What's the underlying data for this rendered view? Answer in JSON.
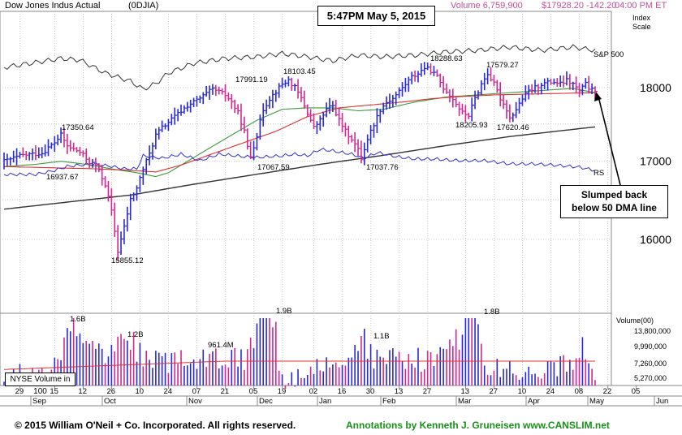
{
  "header": {
    "ticker_name": "Dow Jones Indus Actual",
    "ticker_symbol": "(0DJIA)",
    "volume": "Volume 6,759,900",
    "price": "$17928.20 -142.20",
    "time": "04:00 PM ET"
  },
  "timestamp": "5:47PM May 5, 2015",
  "index_scale_label": [
    "Index",
    "Scale"
  ],
  "sp500_label": "S&P 500",
  "rs_label": "RS",
  "annotation_callout": [
    "Slumped back",
    "below 50 DMA line"
  ],
  "nyse_volume_label": "NYSE Volume in 100",
  "footer": {
    "copyright": "© 2015  William O'Neil + Co. Incorporated. All rights reserved.",
    "annotations": "Annotations by Kenneth J. Gruneisen www.CANSLIM.net"
  },
  "colors": {
    "up_bar": "#2828d8",
    "down_bar": "#d02890",
    "ma50": "#3a9a3a",
    "ma200": "#333333",
    "ma10": "#e03030",
    "sp500_line": "#333333",
    "rs_line": "#3030d0",
    "vol_avg": "#e03030",
    "grid": "#c8c8c8"
  },
  "chart_data": {
    "type": "ohlc",
    "price_axis": {
      "ticks": [
        16000,
        17000,
        18000
      ],
      "scale": "log"
    },
    "volume_axis": {
      "ticks": [
        "13,800,000",
        "9,990,000",
        "7,260,000",
        "5,270,000"
      ],
      "unit_label": "Volume(00)"
    },
    "x_axis": {
      "day_ticks": [
        "29",
        "15",
        "12",
        "26",
        "10",
        "24",
        "07",
        "21",
        "05",
        "19",
        "02",
        "16",
        "30",
        "13",
        "27",
        "13",
        "27",
        "10",
        "24",
        "08",
        "22",
        "05"
      ],
      "month_labels": [
        "Sep",
        "Oct",
        "Nov",
        "Dec",
        "Jan",
        "Feb",
        "Mar",
        "Apr",
        "May",
        "Jun"
      ]
    },
    "price_annotations": [
      {
        "label": "17350.64",
        "value": 17350.64
      },
      {
        "label": "16937.67",
        "value": 16937.67
      },
      {
        "label": "15855.12",
        "value": 15855.12
      },
      {
        "label": "17991.19",
        "value": 17991.19
      },
      {
        "label": "18103.45",
        "value": 18103.45
      },
      {
        "label": "17067.59",
        "value": 17067.59
      },
      {
        "label": "17037.76",
        "value": 17037.76
      },
      {
        "label": "18288.63",
        "value": 18288.63
      },
      {
        "label": "18205.93",
        "value": 18205.93
      },
      {
        "label": "17620.46",
        "value": 17620.46
      },
      {
        "label": "17579.27",
        "value": 17579.27
      }
    ],
    "volume_annotations": [
      "1.6B",
      "1.2B",
      "961.4M",
      "1.9B",
      "1.1B",
      "1.8B"
    ],
    "price_path": [
      [
        0,
        17000
      ],
      [
        6,
        17080
      ],
      [
        12,
        17110
      ],
      [
        16,
        17250
      ],
      [
        18,
        17350
      ],
      [
        20,
        17200
      ],
      [
        24,
        17120
      ],
      [
        27,
        16990
      ],
      [
        29,
        16950
      ],
      [
        32,
        16700
      ],
      [
        34,
        16350
      ],
      [
        36,
        15855
      ],
      [
        38,
        16150
      ],
      [
        40,
        16500
      ],
      [
        42,
        16650
      ],
      [
        44,
        16900
      ],
      [
        46,
        17100
      ],
      [
        48,
        17350
      ],
      [
        50,
        17450
      ],
      [
        54,
        17600
      ],
      [
        58,
        17750
      ],
      [
        62,
        17850
      ],
      [
        66,
        17980
      ],
      [
        70,
        17900
      ],
      [
        72,
        17800
      ],
      [
        74,
        17650
      ],
      [
        76,
        17400
      ],
      [
        77,
        17180
      ],
      [
        78,
        17067
      ],
      [
        80,
        17350
      ],
      [
        82,
        17700
      ],
      [
        84,
        17850
      ],
      [
        86,
        17950
      ],
      [
        88,
        18050
      ],
      [
        90,
        18103
      ],
      [
        92,
        18000
      ],
      [
        94,
        17850
      ],
      [
        96,
        17650
      ],
      [
        98,
        17450
      ],
      [
        100,
        17550
      ],
      [
        102,
        17700
      ],
      [
        104,
        17750
      ],
      [
        106,
        17550
      ],
      [
        108,
        17400
      ],
      [
        110,
        17300
      ],
      [
        112,
        17150
      ],
      [
        113,
        17037
      ],
      [
        115,
        17300
      ],
      [
        117,
        17500
      ],
      [
        119,
        17700
      ],
      [
        121,
        17800
      ],
      [
        123,
        17850
      ],
      [
        125,
        17950
      ],
      [
        127,
        18050
      ],
      [
        129,
        18150
      ],
      [
        131,
        18200
      ],
      [
        133,
        18280
      ],
      [
        135,
        18240
      ],
      [
        137,
        18150
      ],
      [
        139,
        18000
      ],
      [
        141,
        17900
      ],
      [
        143,
        17780
      ],
      [
        145,
        17650
      ],
      [
        147,
        17620
      ],
      [
        149,
        17850
      ],
      [
        151,
        18050
      ],
      [
        153,
        18200
      ],
      [
        155,
        18050
      ],
      [
        157,
        17850
      ],
      [
        159,
        17700
      ],
      [
        160,
        17580
      ],
      [
        162,
        17700
      ],
      [
        164,
        17850
      ],
      [
        166,
        17950
      ],
      [
        168,
        18000
      ],
      [
        170,
        18050
      ],
      [
        172,
        18070
      ],
      [
        174,
        18080
      ],
      [
        176,
        18050
      ],
      [
        178,
        18100
      ],
      [
        180,
        18050
      ],
      [
        182,
        17950
      ],
      [
        184,
        18050
      ],
      [
        185,
        18000
      ],
      [
        187,
        17928
      ]
    ],
    "volume_path": [
      [
        0,
        6.2
      ],
      [
        12,
        7.2
      ],
      [
        16,
        8.3
      ],
      [
        22,
        16.0
      ],
      [
        30,
        9.5
      ],
      [
        38,
        12.5
      ],
      [
        46,
        8.5
      ],
      [
        58,
        8.5
      ],
      [
        64,
        9.0
      ],
      [
        66,
        9.6
      ],
      [
        76,
        9.0
      ],
      [
        84,
        19.0
      ],
      [
        88,
        5.2
      ],
      [
        94,
        6.0
      ],
      [
        100,
        7.5
      ],
      [
        108,
        7.6
      ],
      [
        114,
        11.6
      ],
      [
        118,
        8.5
      ],
      [
        132,
        8.8
      ],
      [
        140,
        8.8
      ],
      [
        148,
        17.8
      ],
      [
        152,
        7.5
      ],
      [
        160,
        7.0
      ],
      [
        172,
        7.5
      ],
      [
        180,
        8.5
      ],
      [
        183,
        10.5
      ],
      [
        187,
        6.8
      ]
    ],
    "ma50_path": [
      [
        0,
        16930
      ],
      [
        10,
        16960
      ],
      [
        18,
        17000
      ],
      [
        26,
        16960
      ],
      [
        34,
        16900
      ],
      [
        42,
        16850
      ],
      [
        48,
        16800
      ],
      [
        52,
        16850
      ],
      [
        60,
        17050
      ],
      [
        70,
        17300
      ],
      [
        80,
        17550
      ],
      [
        88,
        17700
      ],
      [
        96,
        17720
      ],
      [
        104,
        17720
      ],
      [
        112,
        17680
      ],
      [
        120,
        17700
      ],
      [
        130,
        17800
      ],
      [
        140,
        17870
      ],
      [
        150,
        17900
      ],
      [
        160,
        17930
      ],
      [
        170,
        17960
      ],
      [
        180,
        17990
      ],
      [
        187,
        17930
      ]
    ],
    "ma200_path": [
      [
        0,
        16380
      ],
      [
        20,
        16470
      ],
      [
        40,
        16560
      ],
      [
        60,
        16700
      ],
      [
        80,
        16830
      ],
      [
        100,
        16960
      ],
      [
        120,
        17080
      ],
      [
        140,
        17210
      ],
      [
        160,
        17330
      ],
      [
        187,
        17460
      ]
    ],
    "ma10_path": [
      [
        0,
        16930
      ],
      [
        10,
        16920
      ],
      [
        20,
        16910
      ],
      [
        30,
        16900
      ],
      [
        40,
        16880
      ],
      [
        48,
        16860
      ],
      [
        56,
        16950
      ],
      [
        66,
        17100
      ],
      [
        76,
        17250
      ],
      [
        86,
        17400
      ],
      [
        96,
        17600
      ],
      [
        106,
        17720
      ],
      [
        116,
        17760
      ],
      [
        126,
        17800
      ],
      [
        136,
        17850
      ],
      [
        146,
        17880
      ],
      [
        156,
        17900
      ],
      [
        166,
        17910
      ],
      [
        176,
        17920
      ],
      [
        187,
        17930
      ]
    ],
    "sp500_y_path": [
      [
        0,
        83
      ],
      [
        10,
        77
      ],
      [
        18,
        72
      ],
      [
        24,
        74
      ],
      [
        32,
        90
      ],
      [
        36,
        95
      ],
      [
        40,
        100
      ],
      [
        44,
        110
      ],
      [
        48,
        103
      ],
      [
        52,
        90
      ],
      [
        60,
        78
      ],
      [
        70,
        72
      ],
      [
        80,
        70
      ],
      [
        88,
        66
      ],
      [
        96,
        70
      ],
      [
        104,
        75
      ],
      [
        112,
        68
      ],
      [
        120,
        70
      ],
      [
        130,
        68
      ],
      [
        140,
        64
      ],
      [
        150,
        62
      ],
      [
        160,
        58
      ],
      [
        170,
        62
      ],
      [
        180,
        58
      ],
      [
        187,
        62
      ]
    ],
    "rs_y_path": [
      [
        0,
        215
      ],
      [
        10,
        215
      ],
      [
        16,
        210
      ],
      [
        20,
        205
      ],
      [
        28,
        202
      ],
      [
        34,
        205
      ],
      [
        38,
        208
      ],
      [
        42,
        208
      ],
      [
        44,
        192
      ],
      [
        50,
        195
      ],
      [
        56,
        190
      ],
      [
        62,
        198
      ],
      [
        68,
        190
      ],
      [
        76,
        193
      ],
      [
        80,
        194
      ],
      [
        84,
        193
      ],
      [
        88,
        192
      ],
      [
        92,
        190
      ],
      [
        96,
        192
      ],
      [
        100,
        184
      ],
      [
        104,
        186
      ],
      [
        110,
        190
      ],
      [
        114,
        195
      ],
      [
        118,
        188
      ],
      [
        124,
        193
      ],
      [
        130,
        196
      ],
      [
        136,
        196
      ],
      [
        144,
        198
      ],
      [
        152,
        198
      ],
      [
        160,
        202
      ],
      [
        168,
        202
      ],
      [
        176,
        204
      ],
      [
        182,
        206
      ],
      [
        187,
        210
      ]
    ]
  }
}
